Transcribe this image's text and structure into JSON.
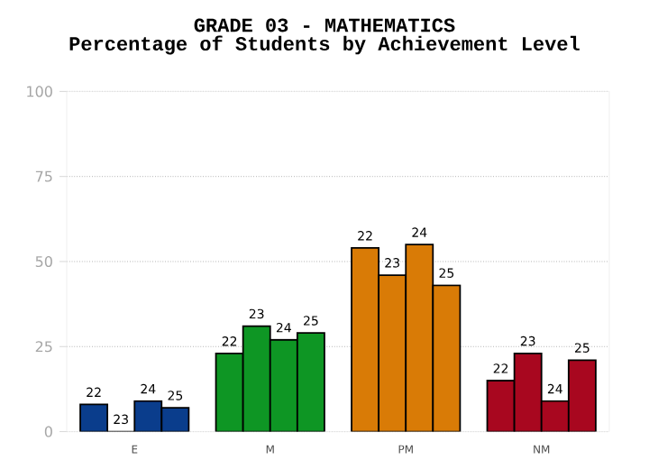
{
  "chart_data": {
    "type": "bar",
    "title": "GRADE 03 - MATHEMATICS",
    "subtitle": "Percentage of Students by Achievement Level",
    "categories": [
      "E",
      "M",
      "PM",
      "NM"
    ],
    "series": [
      {
        "name": "22",
        "colors": [
          "#0a3d8c",
          "#0e9624",
          "#d97b06",
          "#a8071f"
        ],
        "values": [
          8,
          23,
          54,
          15
        ]
      },
      {
        "name": "23",
        "colors": [
          "#0a3d8c",
          "#0e9624",
          "#d97b06",
          "#a8071f"
        ],
        "values": [
          0,
          31,
          46,
          23
        ]
      },
      {
        "name": "24",
        "colors": [
          "#0a3d8c",
          "#0e9624",
          "#d97b06",
          "#a8071f"
        ],
        "values": [
          9,
          27,
          55,
          9
        ]
      },
      {
        "name": "25",
        "colors": [
          "#0a3d8c",
          "#0e9624",
          "#d97b06",
          "#a8071f"
        ],
        "values": [
          7,
          29,
          43,
          21
        ]
      }
    ],
    "ylim": [
      0,
      100
    ],
    "yticks": [
      0,
      25,
      50,
      75,
      100
    ],
    "grid": "y"
  }
}
